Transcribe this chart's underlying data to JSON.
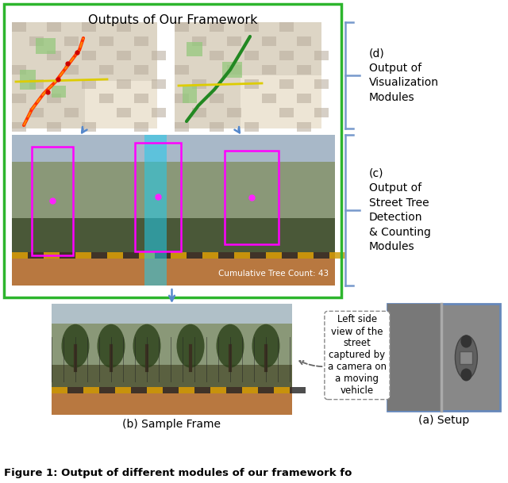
{
  "title": "Outputs of Our Framework",
  "figure_caption": "Figure 1: Output of different modules of our framework fo",
  "label_d_lines": [
    "(d)",
    "Output of",
    "Visualization",
    "Modules"
  ],
  "label_c_lines": [
    "(c)",
    "Output of",
    "Street Tree",
    "Detection",
    "& Counting",
    "Modules"
  ],
  "label_b": "(b) Sample Frame",
  "label_a": "(a) Setup",
  "arrow_note": "Left side\nview of the\nstreet\ncaptured by\na camera on\na moving\nvehicle",
  "cumulative_text": "Cumulative Tree Count: 43",
  "green_border_color": "#2db52d",
  "bracket_color": "#7799cc",
  "bg_color": "#ffffff",
  "map1_bg": "#d8cfc0",
  "map2_bg": "#d8cfc0",
  "street_dark": "#5a6040",
  "street_mid": "#8a9070",
  "street_light": "#b0b898",
  "ground_color": "#c8873a",
  "cyan_color": "#30c8d8",
  "magenta_color": "#ff00ff",
  "setup_bg": "#909090",
  "setup_border": "#6688bb"
}
